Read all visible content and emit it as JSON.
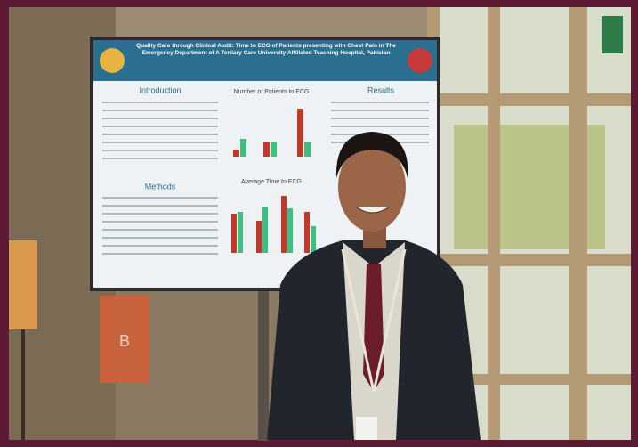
{
  "poster": {
    "title": "Quality Care through Clinical Audit: Time to ECG of Patients presenting with Chest Pain in The Emergency Department of A Tertiary Care University Affiliated Teaching Hospital, Pakistan",
    "sections": [
      "Introduction",
      "Methods",
      "Results"
    ],
    "chart_titles": [
      "Number of Patients to ECG",
      "Average Time to ECG"
    ]
  },
  "sign": "B"
}
